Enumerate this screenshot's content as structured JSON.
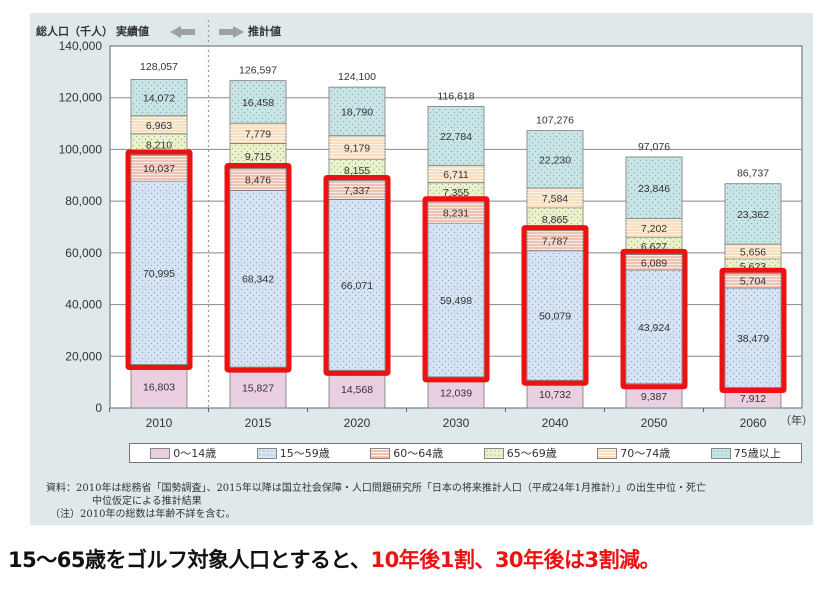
{
  "header": {
    "y_axis_title": "総人口（千人）",
    "actual_label": "実績値",
    "projection_label": "推計値"
  },
  "chart_data": {
    "type": "bar",
    "stacked": true,
    "title": "",
    "xlabel": "（年）",
    "ylabel": "総人口（千人）",
    "ylim": [
      0,
      140000
    ],
    "yticks": [
      0,
      20000,
      40000,
      60000,
      80000,
      100000,
      120000,
      140000
    ],
    "ytick_labels": [
      "0",
      "20,000",
      "40,000",
      "60,000",
      "80,000",
      "100,000",
      "120,000",
      "140,000"
    ],
    "grid": true,
    "legend_position": "bottom",
    "categories": [
      "2010",
      "2015",
      "2020",
      "2030",
      "2040",
      "2050",
      "2060"
    ],
    "totals": [
      128057,
      126597,
      124100,
      116618,
      107276,
      97076,
      86737
    ],
    "total_labels": [
      "128,057",
      "126,597",
      "124,100",
      "116,618",
      "107,276",
      "97,076",
      "86,737"
    ],
    "series": [
      {
        "name": "0～14歳",
        "color": "#e9cfe0",
        "pattern": "none",
        "values": [
          16803,
          15827,
          14568,
          12039,
          10732,
          9387,
          7912
        ],
        "labels": [
          "16,803",
          "15,827",
          "14,568",
          "12,039",
          "10,732",
          "9,387",
          "7,912"
        ]
      },
      {
        "name": "15～59歳",
        "color": "#d6e3f4",
        "pattern": "dots",
        "values": [
          70995,
          68342,
          66071,
          59498,
          50079,
          43924,
          38479
        ],
        "labels": [
          "70,995",
          "68,342",
          "66,071",
          "59,498",
          "50,079",
          "43,924",
          "38,479"
        ]
      },
      {
        "name": "60～64歳",
        "color": "#efc3b4",
        "pattern": "hlines",
        "values": [
          10037,
          8476,
          7337,
          8231,
          7787,
          6089,
          5704
        ],
        "labels": [
          "10,037",
          "8,476",
          "7,337",
          "8,231",
          "7,787",
          "6,089",
          "5,704"
        ]
      },
      {
        "name": "65～69歳",
        "color": "#eaf2c6",
        "pattern": "dots",
        "values": [
          8210,
          9715,
          8155,
          7355,
          8865,
          6627,
          5623
        ],
        "labels": [
          "8,210",
          "9,715",
          "8,155",
          "7,355",
          "8,865",
          "6,627",
          "5,623"
        ]
      },
      {
        "name": "70～74歳",
        "color": "#f8dfbf",
        "pattern": "hlines",
        "values": [
          6963,
          7779,
          9179,
          6711,
          7584,
          7202,
          5656
        ],
        "labels": [
          "6,963",
          "7,779",
          "9,179",
          "6,711",
          "7,584",
          "7,202",
          "5,656"
        ]
      },
      {
        "name": "75歳以上",
        "color": "#c8e5e6",
        "pattern": "dots",
        "values": [
          14072,
          16458,
          18790,
          22784,
          22230,
          23846,
          23362
        ],
        "labels": [
          "14,072",
          "16,458",
          "18,790",
          "22,784",
          "22,230",
          "23,846",
          "23,362"
        ]
      }
    ],
    "highlight": {
      "series": [
        "15～59歳",
        "60～64歳"
      ],
      "color": "#ee1111"
    },
    "divider_after_category": "2010"
  },
  "legend": {
    "items": [
      "0～14歳",
      "15～59歳",
      "60～64歳",
      "65～69歳",
      "70～74歳",
      "75歳以上"
    ]
  },
  "source": {
    "line1": "資料：2010年は総務省「国勢調査」、2015年以降は国立社会保障・人口問題研究所「日本の将来推計人口（平成24年1月推計）」の出生中位・死亡",
    "line2": "中位仮定による推計結果",
    "line3": "（注）2010年の総数は年齢不詳を含む。"
  },
  "caption": {
    "black_part": "15～65歳をゴルフ対象人口とすると、",
    "red_part": "10年後1割、30年後は3割減。"
  },
  "colors": {
    "highlight": "#ee1111",
    "panel": "#dfe9ec",
    "arrow": "#a0a0a0"
  }
}
